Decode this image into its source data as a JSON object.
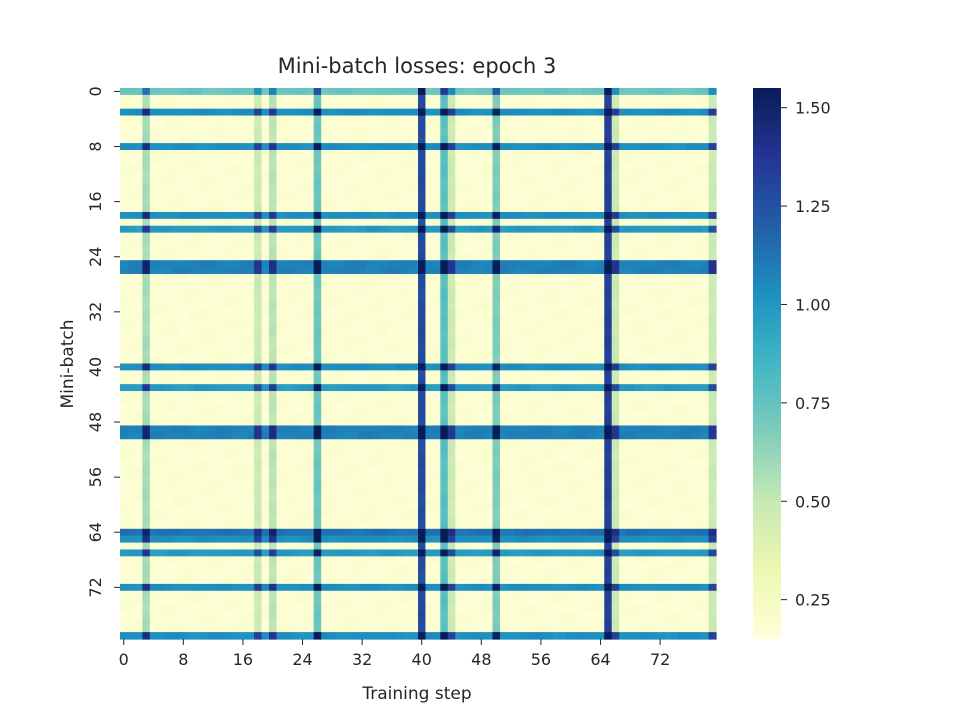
{
  "chart_data": {
    "type": "heatmap",
    "title": "Mini-batch losses: epoch 3",
    "xlabel": "Training step",
    "ylabel": "Mini-batch",
    "rows": 80,
    "cols": 80,
    "x_tick_labels": [
      "0",
      "8",
      "16",
      "24",
      "32",
      "40",
      "48",
      "56",
      "64",
      "72"
    ],
    "y_tick_labels": [
      "0",
      "8",
      "16",
      "24",
      "32",
      "40",
      "48",
      "56",
      "64",
      "72"
    ],
    "colorbar": {
      "min": 0.15,
      "max": 1.55,
      "ticks": [
        0.25,
        0.5,
        0.75,
        1.0,
        1.25,
        1.5
      ],
      "tick_labels": [
        "0.25",
        "0.50",
        "0.75",
        "1.00",
        "1.25",
        "1.50"
      ],
      "colormap": "YlGnBu",
      "colors": [
        "#ffffd9",
        "#edf8b1",
        "#c7e9b4",
        "#7fcdbb",
        "#41b6c4",
        "#1d91c0",
        "#225ea8",
        "#253494",
        "#081d58"
      ]
    },
    "base_loss": 0.18,
    "row_effects": [
      {
        "index": 0,
        "value": 0.55
      },
      {
        "index": 3,
        "value": 0.85
      },
      {
        "index": 8,
        "value": 0.85
      },
      {
        "index": 18,
        "value": 0.85
      },
      {
        "index": 20,
        "value": 0.8
      },
      {
        "index": 25,
        "value": 0.9
      },
      {
        "index": 26,
        "value": 0.9
      },
      {
        "index": 40,
        "value": 0.85
      },
      {
        "index": 43,
        "value": 0.8
      },
      {
        "index": 49,
        "value": 0.9
      },
      {
        "index": 50,
        "value": 0.9
      },
      {
        "index": 64,
        "value": 0.95
      },
      {
        "index": 65,
        "value": 0.85
      },
      {
        "index": 67,
        "value": 0.8
      },
      {
        "index": 72,
        "value": 0.85
      },
      {
        "index": 79,
        "value": 0.85
      }
    ],
    "col_effects": [
      {
        "index": 3,
        "value": 0.4
      },
      {
        "index": 18,
        "value": 0.3
      },
      {
        "index": 20,
        "value": 0.35
      },
      {
        "index": 26,
        "value": 0.55
      },
      {
        "index": 40,
        "value": 1.1
      },
      {
        "index": 43,
        "value": 0.6
      },
      {
        "index": 44,
        "value": 0.3
      },
      {
        "index": 50,
        "value": 0.5
      },
      {
        "index": 65,
        "value": 1.15
      },
      {
        "index": 66,
        "value": 0.3
      },
      {
        "index": 79,
        "value": 0.3
      }
    ]
  }
}
